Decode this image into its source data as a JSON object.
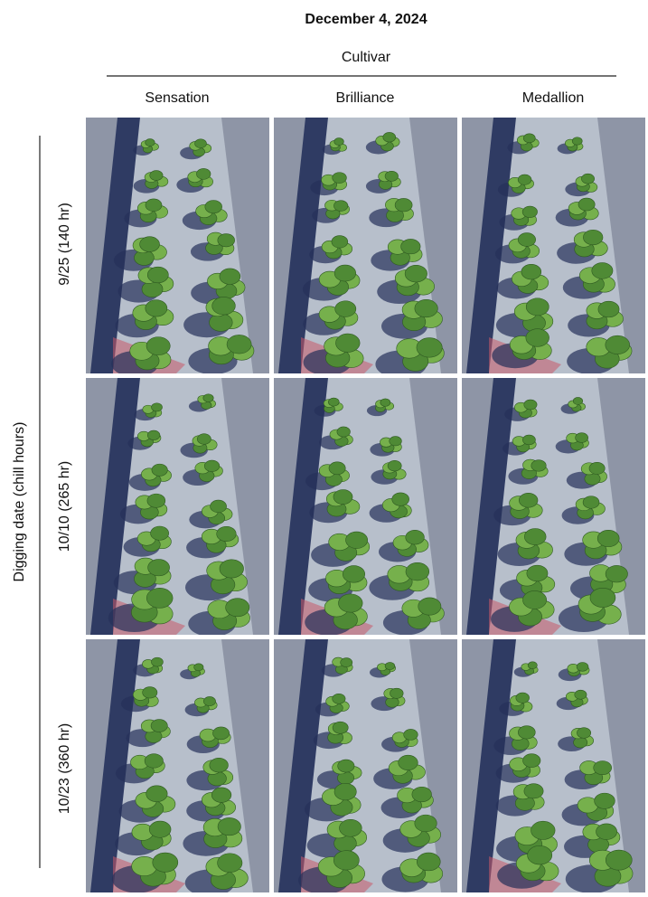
{
  "header": {
    "title": "December 4, 2024",
    "group_label": "Cultivar"
  },
  "columns": [
    "Sensation",
    "Brilliance",
    "Medallion"
  ],
  "row_group_label": "Digging date (chill hours)",
  "rows": [
    "9/25 (140 hr)",
    "10/10 (265 hr)",
    "10/23 (360 hr)"
  ]
}
